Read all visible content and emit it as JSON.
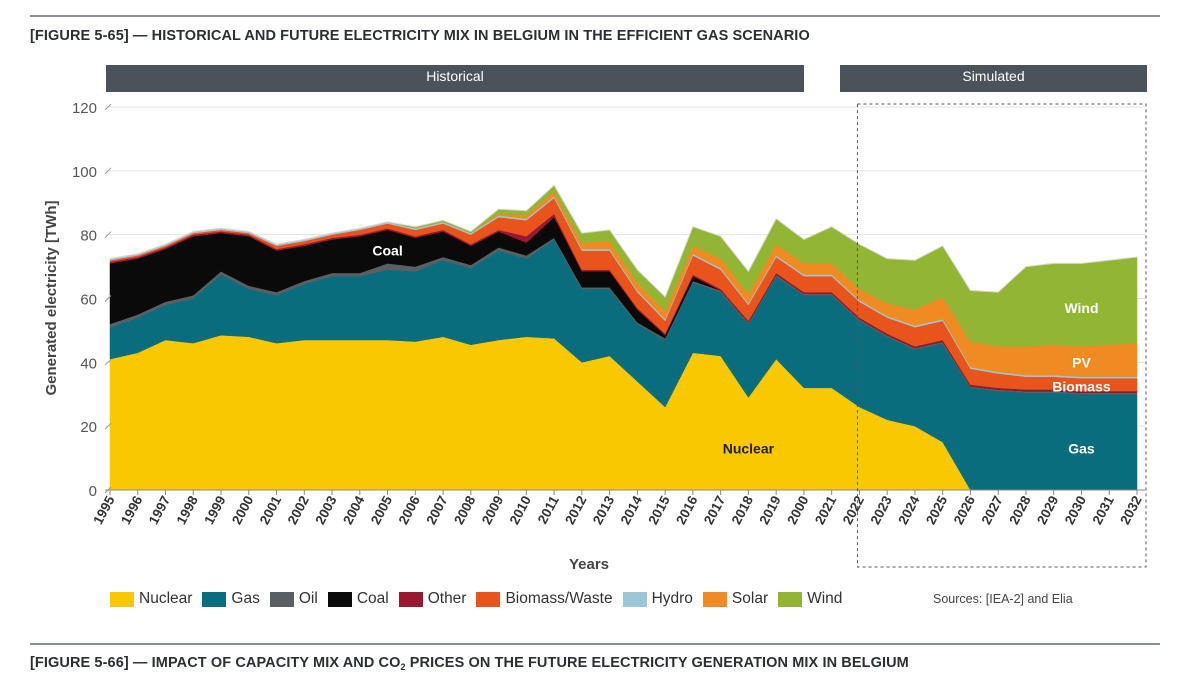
{
  "figure_65": {
    "title": "[FIGURE 5-65] — HISTORICAL AND FUTURE ELECTRICITY MIX IN BELGIUM IN THE EFFICIENT GAS SCENARIO"
  },
  "figure_66": {
    "title_part1": "[FIGURE 5-66] — IMPACT OF CAPACITY MIX AND CO",
    "title_sub": "2",
    "title_part2": " PRICES ON THE FUTURE ELECTRICITY GENERATION MIX IN BELGIUM"
  },
  "banners": {
    "historical": "Historical",
    "simulated": "Simulated"
  },
  "sources": "Sources: [IEA-2] and Elia",
  "colors": {
    "Nuclear": "#f8c800",
    "Gas": "#0a6d7d",
    "Oil": "#5a5f63",
    "Coal": "#0a0a0a",
    "Other": "#9a1730",
    "Biomass/Waste": "#e8541b",
    "Hydro": "#9cc7d8",
    "Solar": "#ef8b22",
    "Wind": "#93b534"
  },
  "chart_data": {
    "type": "area",
    "stacked": true,
    "ylabel": "Generated electricity [TWh]",
    "xlabel": "Years",
    "ylim": [
      0,
      120
    ],
    "yticks": [
      0,
      20,
      40,
      60,
      80,
      100,
      120
    ],
    "x": [
      "1995",
      "1996",
      "1997",
      "1998",
      "1999",
      "2000",
      "2001",
      "2002",
      "2003",
      "2004",
      "2005",
      "2006",
      "2007",
      "2008",
      "2009",
      "2010",
      "2011",
      "2012",
      "2013",
      "2014",
      "2015",
      "2016",
      "2017",
      "2018",
      "2019",
      "2000",
      "2021",
      "2022",
      "2023",
      "2024",
      "2025",
      "2026",
      "2027",
      "2028",
      "2029",
      "2030",
      "2031",
      "2032"
    ],
    "series": [
      {
        "name": "Nuclear",
        "values": [
          41,
          43,
          47,
          46,
          48.5,
          48,
          46,
          47,
          47,
          47,
          47,
          46.5,
          48,
          45.5,
          47,
          48,
          47.5,
          40,
          42,
          34,
          26,
          43,
          42,
          29,
          41,
          32,
          32,
          26,
          22,
          20,
          15,
          0,
          0,
          0,
          0,
          0,
          0,
          0
        ]
      },
      {
        "name": "Gas",
        "values": [
          10,
          11,
          11,
          14,
          19,
          15,
          15,
          17.5,
          20,
          20,
          22,
          22,
          24,
          24,
          28,
          24.5,
          31,
          23,
          21,
          18,
          21,
          22,
          20,
          23,
          26,
          29,
          29,
          27,
          26,
          24,
          31,
          32,
          31,
          30.5,
          30.5,
          30,
          30,
          30
        ]
      },
      {
        "name": "Oil",
        "values": [
          1,
          1,
          1,
          1,
          1,
          1,
          1,
          1,
          1,
          1,
          2,
          1.5,
          1,
          1,
          1,
          1,
          0.5,
          0.5,
          0.5,
          0.5,
          0.5,
          0.5,
          0.5,
          0.5,
          0.5,
          0.5,
          0.5,
          0.5,
          0.5,
          0.5,
          0.5,
          0.5,
          0.5,
          0.5,
          0.5,
          0.5,
          0.5,
          0.5
        ]
      },
      {
        "name": "Coal",
        "values": [
          19,
          17.5,
          16.5,
          18.5,
          12,
          15.5,
          13,
          11,
          10.5,
          11.5,
          10.5,
          9,
          8,
          6,
          5,
          4,
          6.5,
          5,
          5,
          4,
          1,
          1.5,
          0,
          0,
          0,
          0,
          0,
          0,
          0,
          0,
          0,
          0,
          0,
          0,
          0,
          0,
          0,
          0
        ]
      },
      {
        "name": "Other",
        "values": [
          0.5,
          0.5,
          0.5,
          0.5,
          0.5,
          0.5,
          0.5,
          0.5,
          0.5,
          0.5,
          0.5,
          0.5,
          0.5,
          0.5,
          0.5,
          2,
          1,
          0.5,
          0.5,
          0.5,
          0.5,
          0.5,
          0.5,
          0.5,
          0.5,
          0.5,
          0.5,
          0.5,
          0.5,
          0.5,
          0.5,
          0.5,
          0.5,
          0.5,
          0.5,
          0.5,
          0.5,
          0.5
        ]
      },
      {
        "name": "Biomass/Waste",
        "values": [
          0.5,
          0.5,
          0.5,
          0.5,
          0.5,
          0.5,
          1,
          1,
          1,
          1.5,
          1.5,
          2,
          2,
          3,
          4,
          5,
          5,
          6,
          6,
          5,
          4,
          6,
          6,
          5,
          5,
          5,
          5,
          5,
          5,
          6,
          6,
          5,
          4.5,
          4,
          4,
          4,
          4,
          4
        ]
      },
      {
        "name": "Hydro",
        "values": [
          0.5,
          0.5,
          0.5,
          0.5,
          0.5,
          0.5,
          0.5,
          0.5,
          0.5,
          0.5,
          0.5,
          0.5,
          0.5,
          0.5,
          0.5,
          0.5,
          0.5,
          0.5,
          0.5,
          0.5,
          0.5,
          0.5,
          0.5,
          0.5,
          0.5,
          0.5,
          0.5,
          0.5,
          0.5,
          0.5,
          0.5,
          0.5,
          0.5,
          0.5,
          0.5,
          0.5,
          0.5,
          0.5
        ]
      },
      {
        "name": "Solar",
        "values": [
          0,
          0,
          0,
          0,
          0,
          0,
          0,
          0,
          0,
          0,
          0,
          0,
          0,
          0,
          0.5,
          1,
          1.5,
          2,
          2.5,
          2.5,
          2.5,
          2.5,
          3,
          3,
          3.5,
          3.5,
          3.5,
          3.5,
          4,
          5,
          7,
          8,
          8,
          9,
          9.5,
          9.5,
          10,
          10.5
        ]
      },
      {
        "name": "Wind",
        "values": [
          0,
          0,
          0,
          0,
          0,
          0,
          0,
          0,
          0,
          0,
          0,
          0.5,
          0.5,
          0.5,
          1.5,
          1.5,
          2,
          3,
          3.5,
          4,
          4.5,
          6,
          7,
          7,
          8,
          7.5,
          11.5,
          14,
          14,
          15.5,
          16,
          16,
          17,
          25,
          25.5,
          26,
          26.5,
          27
        ]
      }
    ],
    "split_label": "2022",
    "annotations": [
      {
        "text": "Coal",
        "x": "2005",
        "y": 75
      },
      {
        "text": "Nuclear",
        "x": "2018",
        "y": 13
      },
      {
        "text": "Wind",
        "x": "2030",
        "y": 57
      },
      {
        "text": "PV",
        "x": "2030",
        "y": 40
      },
      {
        "text": "Biomass",
        "x": "2030",
        "y": 32.5
      },
      {
        "text": "Gas",
        "x": "2030",
        "y": 13
      }
    ],
    "legend_position": "bottom"
  }
}
